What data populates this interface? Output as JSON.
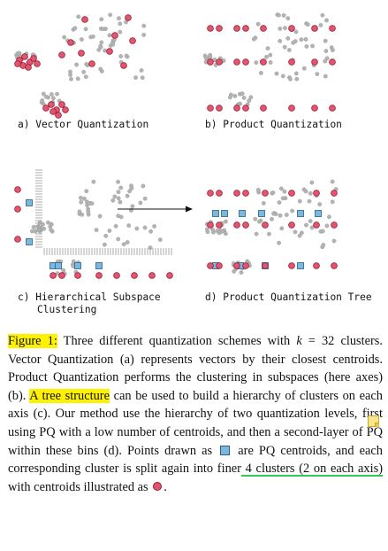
{
  "panels": {
    "a": "a)  Vector  Quantization",
    "b": "b)  Product  Quantization",
    "c_line1": "c)  Hierarchical  Subspace",
    "c_line2": "Clustering",
    "d": "d)  Product  Quantization  Tree"
  },
  "caption": {
    "label": "Figure 1:",
    "s1": " Three different quantization schemes with ",
    "k": "k",
    "s2": " = 32 clusters. Vector Quantization (a) represents vectors by their closest centroids. Product Quantization performs the clustering in subspaces (here axes) (b). ",
    "highlight": "A tree structure",
    "s3": " can be used to build a hierarchy of clusters on each axis (c). Our method use the hierarchy of two quantization levels, first using PQ with a low number of centroids, and then a second-layer of PQ within these bins (d). Points drawn as ",
    "s4": " are PQ centroids, and each corresponding cluster is split again into finer",
    "underlined": " 4 clusters (2 on each axis)",
    "s5": " with centroids illustrated as ",
    "s6": "."
  },
  "colors": {
    "point_gray": "#b3b3b3",
    "centroid_red": "#e0566e",
    "centroid_blue": "#7ab8e0",
    "highlight_yellow": "#fff200",
    "underline_green": "#34c759"
  }
}
